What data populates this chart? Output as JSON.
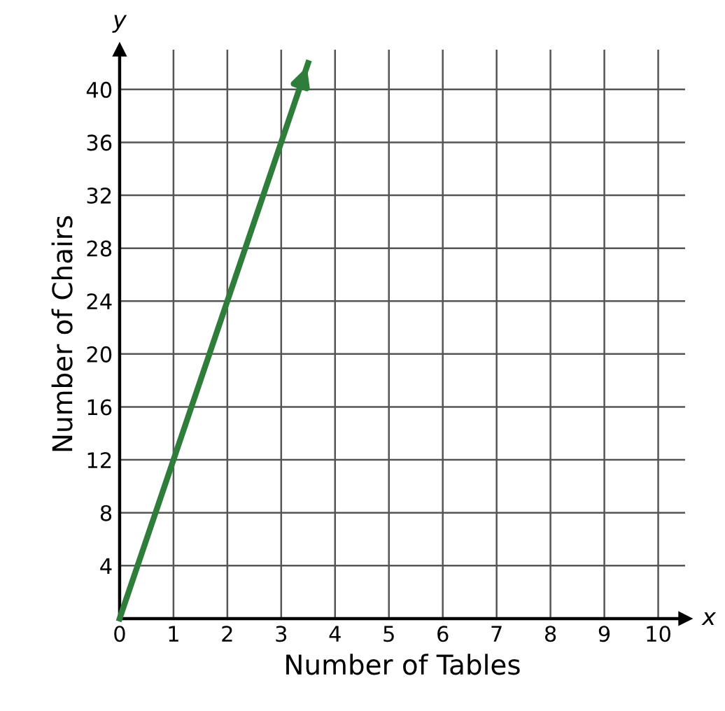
{
  "chart_data": {
    "type": "line",
    "xlabel": "Number of Tables",
    "ylabel": "Number of Chairs",
    "annotations": [
      "x",
      "y"
    ],
    "series": [
      {
        "x": [
          0,
          3.5
        ],
        "values": [
          0,
          42
        ],
        "color": "#2e7d3a"
      }
    ],
    "xlim": [
      0,
      10.5
    ],
    "ylim": [
      0,
      43
    ],
    "xticks": [
      0,
      1,
      2,
      3,
      4,
      5,
      6,
      7,
      8,
      9,
      10
    ],
    "yticks": [
      {
        "value": 0,
        "label": null
      },
      4,
      8,
      12,
      16,
      20,
      24,
      28,
      32,
      36,
      40
    ],
    "grid": true,
    "marker": "none",
    "line_style": "solid"
  }
}
